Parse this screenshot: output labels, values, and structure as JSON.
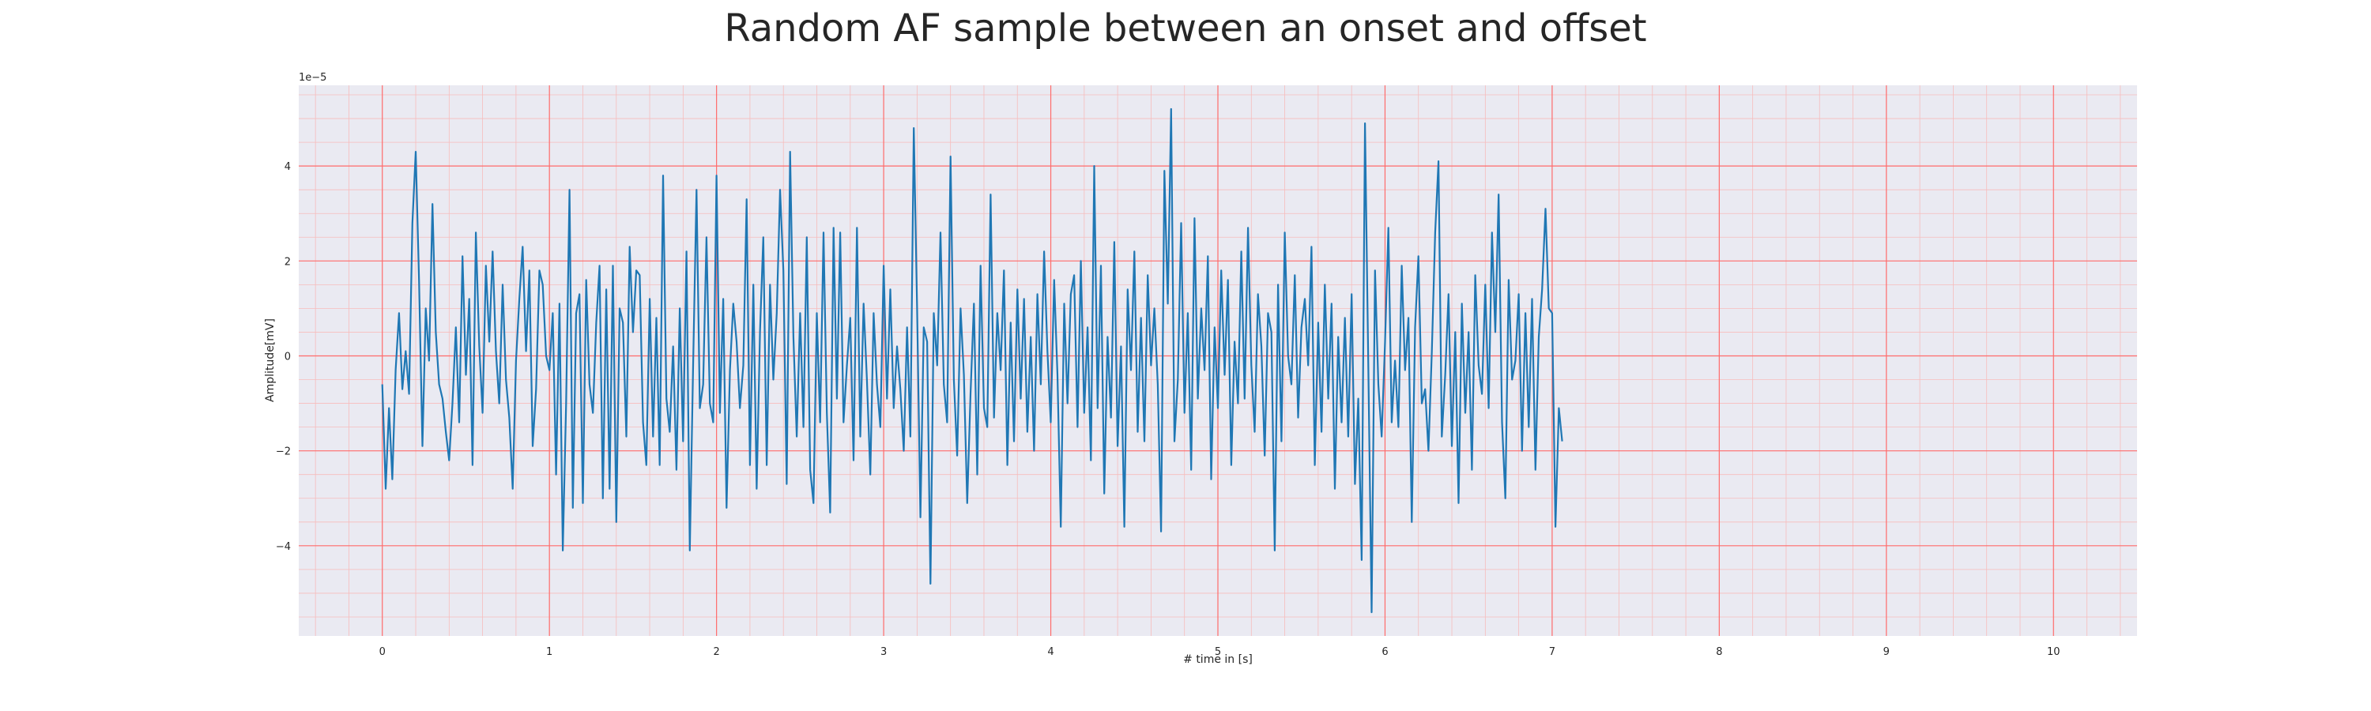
{
  "chart_data": {
    "type": "line",
    "title": "Random AF sample between an onset and offset",
    "xlabel": "# time in [s]",
    "ylabel": "Amplitude[mV]",
    "y_offset_label": "1e−5",
    "xlim": [
      -0.5,
      10.5
    ],
    "ylim": [
      -5.9,
      5.7
    ],
    "xticks": [
      0,
      1,
      2,
      3,
      4,
      5,
      6,
      7,
      8,
      9,
      10
    ],
    "xtick_labels": [
      "0",
      "1",
      "2",
      "3",
      "4",
      "5",
      "6",
      "7",
      "8",
      "9",
      "10"
    ],
    "yticks": [
      -4,
      -2,
      0,
      2,
      4
    ],
    "ytick_labels": [
      "−4",
      "−2",
      "0",
      "2",
      "4"
    ],
    "grid": true,
    "minor_grid": true,
    "background_color": "#eaeaf2",
    "major_grid_color": "#ff6b6b",
    "minor_grid_color": "#f7bcbc",
    "line_color": "#1f77b4",
    "series": [
      {
        "x_start": 0.0,
        "x_step": 0.02,
        "values": [
          -0.6,
          -2.8,
          -1.1,
          -2.6,
          -0.3,
          0.9,
          -0.7,
          0.1,
          -0.8,
          2.8,
          4.3,
          1.6,
          -1.9,
          1.0,
          -0.1,
          3.2,
          0.5,
          -0.6,
          -0.9,
          -1.6,
          -2.2,
          -1.0,
          0.6,
          -1.4,
          2.1,
          -0.4,
          1.2,
          -2.3,
          2.6,
          0.2,
          -1.2,
          1.9,
          0.3,
          2.2,
          0.1,
          -1.0,
          1.5,
          -0.5,
          -1.3,
          -2.8,
          -0.1,
          1.2,
          2.3,
          0.1,
          1.8,
          -1.9,
          -0.7,
          1.8,
          1.5,
          0.0,
          -0.3,
          0.9,
          -2.5,
          1.1,
          -4.1,
          -1.0,
          3.5,
          -3.2,
          0.9,
          1.3,
          -3.1,
          1.6,
          -0.6,
          -1.2,
          0.7,
          1.9,
          -3.0,
          1.4,
          -2.8,
          1.9,
          -3.5,
          1.0,
          0.7,
          -1.7,
          2.3,
          0.5,
          1.8,
          1.7,
          -1.4,
          -2.3,
          1.2,
          -1.7,
          0.8,
          -2.3,
          3.8,
          -0.9,
          -1.6,
          0.2,
          -2.4,
          1.0,
          -1.8,
          2.2,
          -4.1,
          -0.2,
          3.5,
          -1.1,
          -0.6,
          2.5,
          -1.0,
          -1.4,
          3.8,
          -1.2,
          1.2,
          -3.2,
          -0.3,
          1.1,
          0.3,
          -1.1,
          -0.2,
          3.3,
          -2.3,
          1.5,
          -2.8,
          0.5,
          2.5,
          -2.3,
          1.5,
          -0.5,
          0.9,
          3.5,
          1.8,
          -2.7,
          4.3,
          0.4,
          -1.7,
          0.9,
          -1.5,
          2.5,
          -2.4,
          -3.1,
          0.9,
          -1.4,
          2.6,
          -1.2,
          -3.3,
          2.7,
          -0.9,
          2.6,
          -1.4,
          -0.2,
          0.8,
          -2.2,
          2.7,
          -1.7,
          1.1,
          -0.5,
          -2.5,
          0.9,
          -0.6,
          -1.5,
          1.9,
          -0.9,
          1.4,
          -1.1,
          0.2,
          -0.7,
          -2.0,
          0.6,
          -1.7,
          4.8,
          1.0,
          -3.4,
          0.6,
          0.3,
          -4.8,
          0.9,
          -0.2,
          2.6,
          -0.6,
          -1.4,
          4.2,
          -0.5,
          -2.1,
          1.0,
          -0.4,
          -3.1,
          -0.8,
          1.1,
          -2.5,
          1.9,
          -1.1,
          -1.5,
          3.4,
          -1.3,
          0.9,
          -0.3,
          1.8,
          -2.3,
          0.7,
          -1.8,
          1.4,
          -0.9,
          1.2,
          -1.6,
          0.4,
          -2.0,
          1.3,
          -0.6,
          2.2,
          0.1,
          -1.4,
          1.6,
          -0.4,
          -3.6,
          1.1,
          -1.0,
          1.3,
          1.7,
          -1.5,
          2.0,
          -1.2,
          0.6,
          -2.2,
          4.0,
          -1.1,
          1.9,
          -2.9,
          0.4,
          -1.3,
          2.4,
          -1.9,
          0.2,
          -3.6,
          1.4,
          -0.3,
          2.2,
          -1.6,
          0.8,
          -1.8,
          1.7,
          -0.2,
          1.0,
          -0.6,
          -3.7,
          3.9,
          1.1,
          5.2,
          -1.8,
          -0.5,
          2.8,
          -1.2,
          0.9,
          -2.4,
          2.9,
          -0.9,
          1.0,
          -0.3,
          2.1,
          -2.6,
          0.6,
          -1.1,
          1.8,
          -0.4,
          1.6,
          -2.3,
          0.3,
          -1.0,
          2.2,
          -0.9,
          2.7,
          -0.2,
          -1.6,
          1.3,
          0.2,
          -2.1,
          0.9,
          0.5,
          -4.1,
          1.5,
          -1.8,
          2.6,
          0.0,
          -0.6,
          1.7,
          -1.3,
          0.6,
          1.2,
          -0.2,
          2.3,
          -2.3,
          0.7,
          -1.6,
          1.5,
          -0.9,
          1.1,
          -2.8,
          0.4,
          -1.4,
          0.8,
          -1.7,
          1.3,
          -2.7,
          -0.9,
          -4.3,
          4.9,
          -0.2,
          -5.4,
          1.8,
          -0.6,
          -1.7,
          0.3,
          2.7,
          -1.4,
          -0.1,
          -1.5,
          1.9,
          -0.3,
          0.8,
          -3.5,
          0.6,
          2.1,
          -1.0,
          -0.7,
          -2.0,
          0.1,
          2.6,
          4.1,
          -1.7,
          -0.4,
          1.3,
          -1.9,
          0.5,
          -3.1,
          1.1,
          -1.2,
          0.5,
          -2.4,
          1.7,
          -0.2,
          -0.8,
          1.5,
          -1.1,
          2.6,
          0.5,
          3.4,
          -1.4,
          -3.0,
          1.6,
          -0.5,
          -0.1,
          1.3,
          -2.0,
          0.9,
          -1.5,
          1.2,
          -2.4,
          0.4,
          1.4,
          3.1,
          1.0,
          0.9,
          -3.6,
          -1.1,
          -1.8
        ]
      }
    ]
  }
}
